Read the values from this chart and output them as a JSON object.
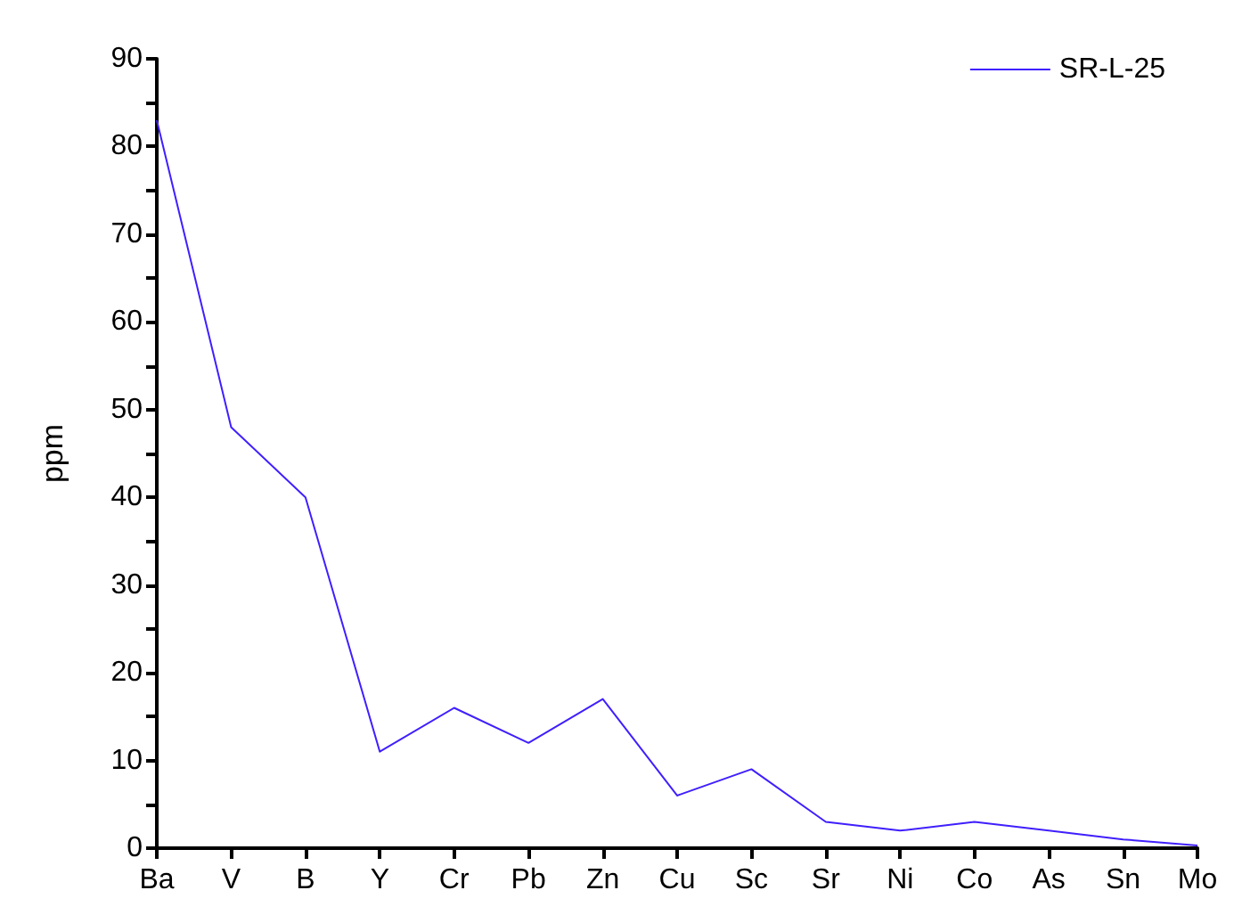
{
  "chart_data": {
    "type": "line",
    "ylabel": "ppm",
    "categories": [
      "Ba",
      "V",
      "B",
      "Y",
      "Cr",
      "Pb",
      "Zn",
      "Cu",
      "Sc",
      "Sr",
      "Ni",
      "Co",
      "As",
      "Sn",
      "Mo"
    ],
    "series": [
      {
        "name": "SR-L-25",
        "color": "#3f1fff",
        "values": [
          83,
          48,
          40,
          11,
          16,
          12,
          17,
          6,
          9,
          3,
          2,
          3,
          2,
          1,
          0.3
        ]
      }
    ],
    "ylim": [
      0,
      90
    ],
    "yticks": [
      0,
      10,
      20,
      30,
      40,
      50,
      60,
      70,
      80,
      90
    ],
    "grid": false,
    "legend": "top right",
    "marker": "none"
  }
}
